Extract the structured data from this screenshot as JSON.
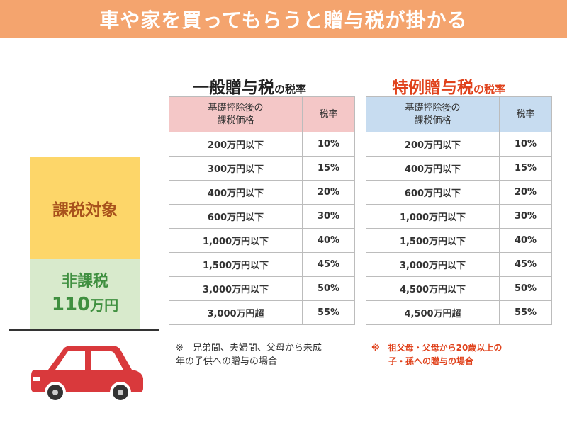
{
  "title": "車や家を買ってもらうと贈与税が掛かる",
  "bar": {
    "taxed_label": "課税対象",
    "nontax_label": "非課税",
    "nontax_amount": "110",
    "nontax_unit": "万円"
  },
  "general": {
    "title_main": "一般贈与税",
    "title_suffix": "の税率",
    "header_col1_line1": "基礎控除後の",
    "header_col1_line2": "課税価格",
    "header_col2": "税率",
    "rows": [
      {
        "amount": "200万円以下",
        "rate": "10%"
      },
      {
        "amount": "300万円以下",
        "rate": "15%"
      },
      {
        "amount": "400万円以下",
        "rate": "20%"
      },
      {
        "amount": "600万円以下",
        "rate": "30%"
      },
      {
        "amount": "1,000万円以下",
        "rate": "40%"
      },
      {
        "amount": "1,500万円以下",
        "rate": "45%"
      },
      {
        "amount": "3,000万円以下",
        "rate": "50%"
      },
      {
        "amount": "3,000万円超",
        "rate": "55%"
      }
    ],
    "note_line1": "※　兄弟間、夫婦間、父母から未成",
    "note_line2": "年の子供への贈与の場合"
  },
  "special": {
    "title_main": "特例贈与税",
    "title_suffix": "の税率",
    "header_col1_line1": "基礎控除後の",
    "header_col1_line2": "課税価格",
    "header_col2": "税率",
    "rows": [
      {
        "amount": "200万円以下",
        "rate": "10%"
      },
      {
        "amount": "400万円以下",
        "rate": "15%"
      },
      {
        "amount": "600万円以下",
        "rate": "20%"
      },
      {
        "amount": "1,000万円以下",
        "rate": "30%"
      },
      {
        "amount": "1,500万円以下",
        "rate": "40%"
      },
      {
        "amount": "3,000万円以下",
        "rate": "45%"
      },
      {
        "amount": "4,500万円以下",
        "rate": "50%"
      },
      {
        "amount": "4,500万円超",
        "rate": "55%"
      }
    ],
    "note_line1": "※　祖父母・父母から20歳以上の",
    "note_line2": "　　子・孫への贈与の場合"
  },
  "colors": {
    "banner": "#f4a46e",
    "taxed": "#fdd669",
    "nontax": "#d8eacc",
    "general_header": "#f4c7c7",
    "special_header": "#c7dcf0",
    "special_title": "#e0421c",
    "car": "#d9393c"
  },
  "icons": {
    "car": "car-icon"
  }
}
